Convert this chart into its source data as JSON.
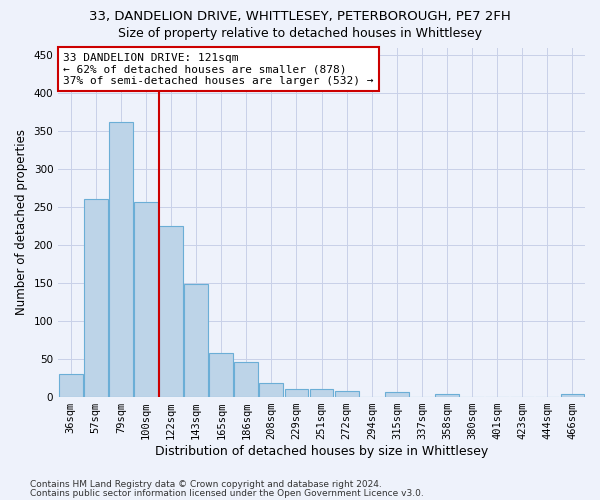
{
  "title": "33, DANDELION DRIVE, WHITTLESEY, PETERBOROUGH, PE7 2FH",
  "subtitle": "Size of property relative to detached houses in Whittlesey",
  "xlabel": "Distribution of detached houses by size in Whittlesey",
  "ylabel": "Number of detached properties",
  "bar_labels": [
    "36sqm",
    "57sqm",
    "79sqm",
    "100sqm",
    "122sqm",
    "143sqm",
    "165sqm",
    "186sqm",
    "208sqm",
    "229sqm",
    "251sqm",
    "272sqm",
    "294sqm",
    "315sqm",
    "337sqm",
    "358sqm",
    "380sqm",
    "401sqm",
    "423sqm",
    "444sqm",
    "466sqm"
  ],
  "bar_values": [
    30,
    260,
    362,
    257,
    225,
    148,
    57,
    45,
    18,
    10,
    10,
    8,
    0,
    6,
    0,
    4,
    0,
    0,
    0,
    0,
    4
  ],
  "bar_color": "#bdd4e8",
  "bar_edge_color": "#6baed6",
  "background_color": "#eef2fb",
  "grid_color": "#c8d0e8",
  "red_line_x": 3.5,
  "annotation_text": "33 DANDELION DRIVE: 121sqm\n← 62% of detached houses are smaller (878)\n37% of semi-detached houses are larger (532) →",
  "annotation_box_color": "white",
  "annotation_edge_color": "#cc0000",
  "ylim": [
    0,
    460
  ],
  "yticks": [
    0,
    50,
    100,
    150,
    200,
    250,
    300,
    350,
    400,
    450
  ],
  "footer1": "Contains HM Land Registry data © Crown copyright and database right 2024.",
  "footer2": "Contains public sector information licensed under the Open Government Licence v3.0.",
  "title_fontsize": 9.5,
  "subtitle_fontsize": 9,
  "xlabel_fontsize": 9,
  "ylabel_fontsize": 8.5,
  "tick_fontsize": 7.5,
  "annotation_fontsize": 8,
  "footer_fontsize": 6.5
}
